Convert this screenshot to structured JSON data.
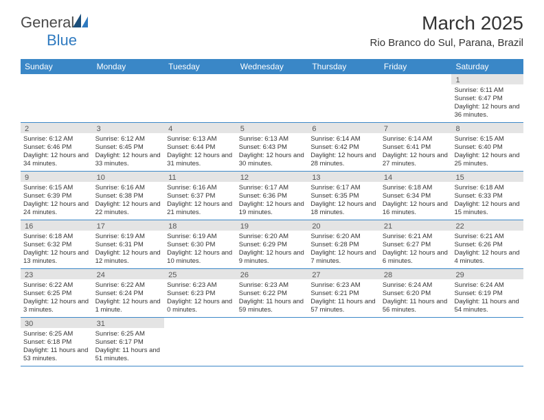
{
  "logo": {
    "text1": "General",
    "text2": "Blue"
  },
  "title": "March 2025",
  "location": "Rio Branco do Sul, Parana, Brazil",
  "colors": {
    "header_bg": "#3a87c7",
    "header_text": "#ffffff",
    "shaded_bg": "#e4e4e4",
    "border": "#3a87c7",
    "text": "#333333"
  },
  "weekdays": [
    "Sunday",
    "Monday",
    "Tuesday",
    "Wednesday",
    "Thursday",
    "Friday",
    "Saturday"
  ],
  "weeks": [
    [
      {
        "blank": true
      },
      {
        "blank": true
      },
      {
        "blank": true
      },
      {
        "blank": true
      },
      {
        "blank": true
      },
      {
        "blank": true
      },
      {
        "n": "1",
        "sunrise": "Sunrise: 6:11 AM",
        "sunset": "Sunset: 6:47 PM",
        "daylight": "Daylight: 12 hours and 36 minutes."
      }
    ],
    [
      {
        "n": "2",
        "sunrise": "Sunrise: 6:12 AM",
        "sunset": "Sunset: 6:46 PM",
        "daylight": "Daylight: 12 hours and 34 minutes."
      },
      {
        "n": "3",
        "sunrise": "Sunrise: 6:12 AM",
        "sunset": "Sunset: 6:45 PM",
        "daylight": "Daylight: 12 hours and 33 minutes."
      },
      {
        "n": "4",
        "sunrise": "Sunrise: 6:13 AM",
        "sunset": "Sunset: 6:44 PM",
        "daylight": "Daylight: 12 hours and 31 minutes."
      },
      {
        "n": "5",
        "sunrise": "Sunrise: 6:13 AM",
        "sunset": "Sunset: 6:43 PM",
        "daylight": "Daylight: 12 hours and 30 minutes."
      },
      {
        "n": "6",
        "sunrise": "Sunrise: 6:14 AM",
        "sunset": "Sunset: 6:42 PM",
        "daylight": "Daylight: 12 hours and 28 minutes."
      },
      {
        "n": "7",
        "sunrise": "Sunrise: 6:14 AM",
        "sunset": "Sunset: 6:41 PM",
        "daylight": "Daylight: 12 hours and 27 minutes."
      },
      {
        "n": "8",
        "sunrise": "Sunrise: 6:15 AM",
        "sunset": "Sunset: 6:40 PM",
        "daylight": "Daylight: 12 hours and 25 minutes."
      }
    ],
    [
      {
        "n": "9",
        "sunrise": "Sunrise: 6:15 AM",
        "sunset": "Sunset: 6:39 PM",
        "daylight": "Daylight: 12 hours and 24 minutes."
      },
      {
        "n": "10",
        "sunrise": "Sunrise: 6:16 AM",
        "sunset": "Sunset: 6:38 PM",
        "daylight": "Daylight: 12 hours and 22 minutes."
      },
      {
        "n": "11",
        "sunrise": "Sunrise: 6:16 AM",
        "sunset": "Sunset: 6:37 PM",
        "daylight": "Daylight: 12 hours and 21 minutes."
      },
      {
        "n": "12",
        "sunrise": "Sunrise: 6:17 AM",
        "sunset": "Sunset: 6:36 PM",
        "daylight": "Daylight: 12 hours and 19 minutes."
      },
      {
        "n": "13",
        "sunrise": "Sunrise: 6:17 AM",
        "sunset": "Sunset: 6:35 PM",
        "daylight": "Daylight: 12 hours and 18 minutes."
      },
      {
        "n": "14",
        "sunrise": "Sunrise: 6:18 AM",
        "sunset": "Sunset: 6:34 PM",
        "daylight": "Daylight: 12 hours and 16 minutes."
      },
      {
        "n": "15",
        "sunrise": "Sunrise: 6:18 AM",
        "sunset": "Sunset: 6:33 PM",
        "daylight": "Daylight: 12 hours and 15 minutes."
      }
    ],
    [
      {
        "n": "16",
        "sunrise": "Sunrise: 6:18 AM",
        "sunset": "Sunset: 6:32 PM",
        "daylight": "Daylight: 12 hours and 13 minutes."
      },
      {
        "n": "17",
        "sunrise": "Sunrise: 6:19 AM",
        "sunset": "Sunset: 6:31 PM",
        "daylight": "Daylight: 12 hours and 12 minutes."
      },
      {
        "n": "18",
        "sunrise": "Sunrise: 6:19 AM",
        "sunset": "Sunset: 6:30 PM",
        "daylight": "Daylight: 12 hours and 10 minutes."
      },
      {
        "n": "19",
        "sunrise": "Sunrise: 6:20 AM",
        "sunset": "Sunset: 6:29 PM",
        "daylight": "Daylight: 12 hours and 9 minutes."
      },
      {
        "n": "20",
        "sunrise": "Sunrise: 6:20 AM",
        "sunset": "Sunset: 6:28 PM",
        "daylight": "Daylight: 12 hours and 7 minutes."
      },
      {
        "n": "21",
        "sunrise": "Sunrise: 6:21 AM",
        "sunset": "Sunset: 6:27 PM",
        "daylight": "Daylight: 12 hours and 6 minutes."
      },
      {
        "n": "22",
        "sunrise": "Sunrise: 6:21 AM",
        "sunset": "Sunset: 6:26 PM",
        "daylight": "Daylight: 12 hours and 4 minutes."
      }
    ],
    [
      {
        "n": "23",
        "sunrise": "Sunrise: 6:22 AM",
        "sunset": "Sunset: 6:25 PM",
        "daylight": "Daylight: 12 hours and 3 minutes."
      },
      {
        "n": "24",
        "sunrise": "Sunrise: 6:22 AM",
        "sunset": "Sunset: 6:24 PM",
        "daylight": "Daylight: 12 hours and 1 minute."
      },
      {
        "n": "25",
        "sunrise": "Sunrise: 6:23 AM",
        "sunset": "Sunset: 6:23 PM",
        "daylight": "Daylight: 12 hours and 0 minutes."
      },
      {
        "n": "26",
        "sunrise": "Sunrise: 6:23 AM",
        "sunset": "Sunset: 6:22 PM",
        "daylight": "Daylight: 11 hours and 59 minutes."
      },
      {
        "n": "27",
        "sunrise": "Sunrise: 6:23 AM",
        "sunset": "Sunset: 6:21 PM",
        "daylight": "Daylight: 11 hours and 57 minutes."
      },
      {
        "n": "28",
        "sunrise": "Sunrise: 6:24 AM",
        "sunset": "Sunset: 6:20 PM",
        "daylight": "Daylight: 11 hours and 56 minutes."
      },
      {
        "n": "29",
        "sunrise": "Sunrise: 6:24 AM",
        "sunset": "Sunset: 6:19 PM",
        "daylight": "Daylight: 11 hours and 54 minutes."
      }
    ],
    [
      {
        "n": "30",
        "sunrise": "Sunrise: 6:25 AM",
        "sunset": "Sunset: 6:18 PM",
        "daylight": "Daylight: 11 hours and 53 minutes."
      },
      {
        "n": "31",
        "sunrise": "Sunrise: 6:25 AM",
        "sunset": "Sunset: 6:17 PM",
        "daylight": "Daylight: 11 hours and 51 minutes."
      },
      {
        "blank": true
      },
      {
        "blank": true
      },
      {
        "blank": true
      },
      {
        "blank": true
      },
      {
        "blank": true
      }
    ]
  ]
}
